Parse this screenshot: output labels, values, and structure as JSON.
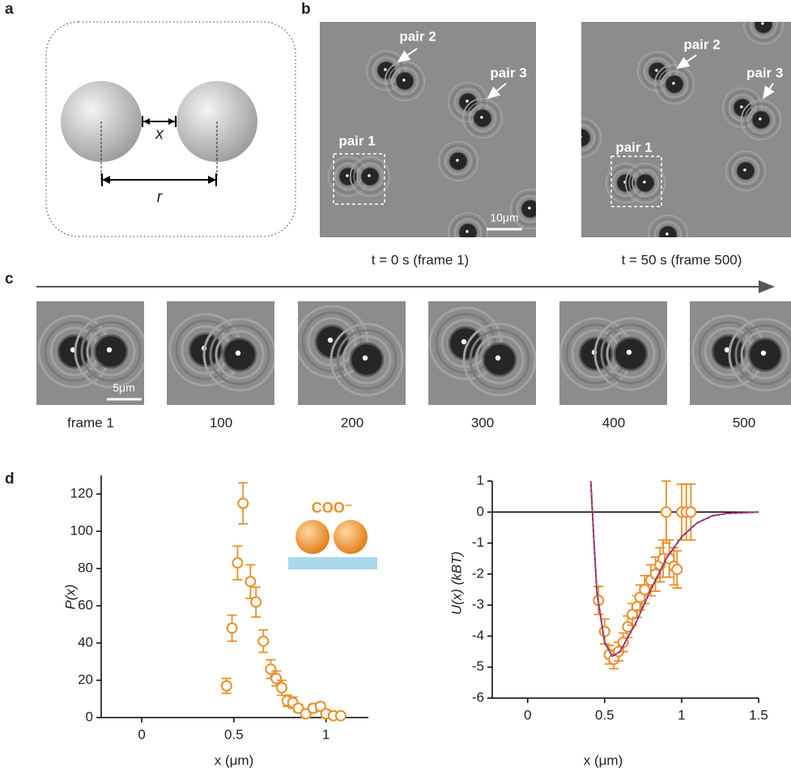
{
  "panel_labels": [
    "a",
    "b",
    "c",
    "d"
  ],
  "panel_a": {
    "gap_label": "x",
    "distance_label": "r"
  },
  "panel_b": {
    "pair_labels": [
      "pair 1",
      "pair 2",
      "pair 3"
    ],
    "scale_bar": "10μm",
    "captions": [
      "t = 0 s (frame 1)",
      "t = 50 s (frame 500)"
    ]
  },
  "panel_c": {
    "scale_bar": "5μm",
    "frames": [
      "frame 1",
      "100",
      "200",
      "300",
      "400",
      "500"
    ]
  },
  "chart_data": [
    {
      "type": "scatter",
      "y_label": "P(x)",
      "x_label": "x (μm)",
      "inset_label": "COO⁻",
      "xlim": [
        -0.22,
        1.23
      ],
      "ylim": [
        0,
        130
      ],
      "xticks": [
        0,
        0.5,
        1
      ],
      "yticks": [
        0,
        20,
        40,
        60,
        80,
        100,
        120
      ],
      "series": [
        {
          "style": "markers",
          "color": "#e8902a",
          "x": [
            0.46,
            0.49,
            0.52,
            0.55,
            0.59,
            0.62,
            0.66,
            0.7,
            0.73,
            0.76,
            0.79,
            0.82,
            0.85,
            0.89,
            0.93,
            0.97,
            1.0,
            1.04,
            1.08
          ],
          "values": [
            17,
            48,
            83,
            115,
            73,
            62,
            41,
            26,
            21,
            16,
            9,
            8,
            5,
            2,
            5,
            6,
            2,
            1,
            1
          ],
          "errors": [
            4,
            7,
            9,
            11,
            9,
            8,
            6,
            5,
            4,
            4,
            3,
            3,
            2,
            2,
            2,
            2,
            2,
            1,
            1
          ]
        }
      ]
    },
    {
      "type": "scatter",
      "y_label": "U(x) (kBT)",
      "x_label": "x (μm)",
      "zero_line": true,
      "xlim": [
        -0.23,
        1.5
      ],
      "ylim": [
        -6,
        1
      ],
      "xticks": [
        0,
        0.5,
        1,
        1.5
      ],
      "yticks": [
        -6,
        -5,
        -4,
        -3,
        -2,
        -1,
        0,
        1
      ],
      "series": [
        {
          "style": "markers",
          "color": "#e8902a",
          "x": [
            0.46,
            0.5,
            0.53,
            0.56,
            0.59,
            0.62,
            0.65,
            0.68,
            0.71,
            0.73,
            0.76,
            0.8,
            0.83,
            0.86,
            0.88,
            0.92,
            0.95,
            0.97,
            0.9,
            1.0,
            1.03,
            1.06
          ],
          "values": [
            -2.85,
            -3.85,
            -4.6,
            -4.75,
            -4.5,
            -4.2,
            -3.7,
            -3.3,
            -3.05,
            -2.75,
            -2.5,
            -2.2,
            -2.0,
            -1.7,
            -1.5,
            -1.5,
            -1.75,
            -1.85,
            0,
            0,
            0,
            0
          ],
          "errors": [
            0.45,
            0.4,
            0.3,
            0.3,
            0.3,
            0.3,
            0.35,
            0.35,
            0.35,
            0.4,
            0.45,
            0.5,
            0.55,
            0.55,
            0.6,
            0.6,
            0.6,
            0.6,
            1.0,
            0.9,
            0.9,
            0.9
          ]
        },
        {
          "style": "line",
          "color": "#7b2d6e",
          "x": [
            0.41,
            0.43,
            0.45,
            0.5,
            0.55,
            0.6,
            0.7,
            0.8,
            0.9,
            1.0,
            1.1,
            1.2,
            1.3,
            1.5
          ],
          "values": [
            1,
            -0.9,
            -2.6,
            -4.2,
            -4.65,
            -4.5,
            -3.6,
            -2.5,
            -1.5,
            -0.8,
            -0.35,
            -0.12,
            -0.04,
            0
          ]
        }
      ]
    }
  ]
}
